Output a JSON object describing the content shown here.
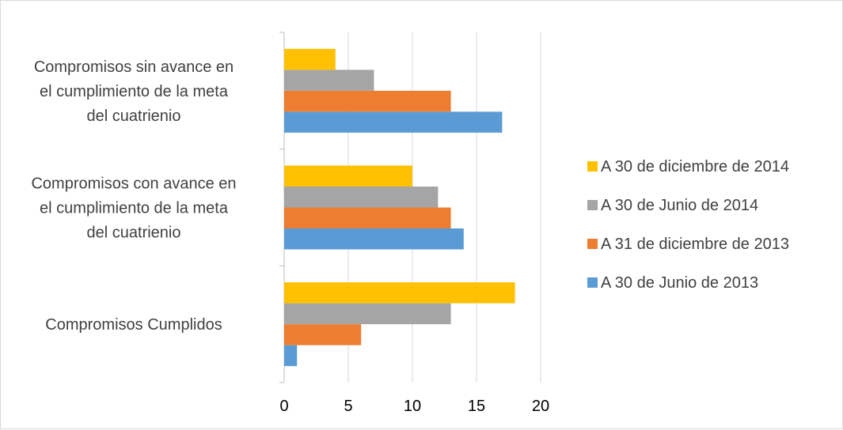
{
  "chart_data": {
    "type": "bar",
    "orientation": "horizontal",
    "categories": [
      [
        "Compromisos Cumplidos"
      ],
      [
        "Compromisos con avance en",
        "el cumplimiento de la meta",
        "del cuatrienio"
      ],
      [
        "Compromisos sin avance en",
        "el cumplimiento de la meta",
        "del cuatrienio"
      ]
    ],
    "series": [
      {
        "name": "A 30 de Junio de 2013",
        "color": "#5b9bd5",
        "values": [
          1,
          14,
          17
        ]
      },
      {
        "name": "A 31 de diciembre de 2013",
        "color": "#ed7d31",
        "values": [
          6,
          13,
          13
        ]
      },
      {
        "name": "A 30 de Junio de 2014",
        "color": "#a5a5a5",
        "values": [
          13,
          12,
          7
        ]
      },
      {
        "name": "A 30 de diciembre de 2014",
        "color": "#ffc000",
        "values": [
          18,
          10,
          4
        ]
      }
    ],
    "xlim": [
      0,
      20
    ],
    "xticks": [
      "0",
      "5",
      "10",
      "15",
      "20"
    ],
    "grid": "vertical",
    "legend": "right",
    "title": "",
    "xlabel": "",
    "ylabel": ""
  }
}
